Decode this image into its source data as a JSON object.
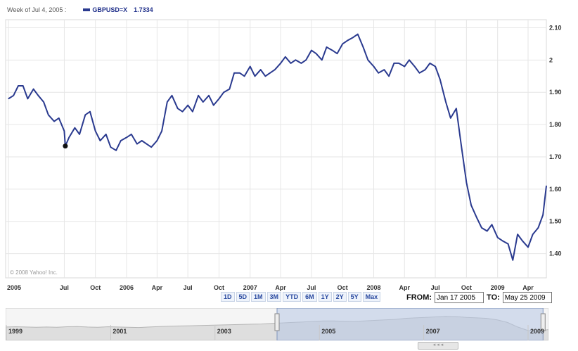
{
  "header": {
    "hover_date": "Week of Jul 4, 2005 :",
    "symbol": "GBPUSD=X",
    "value": "1.7334"
  },
  "chart_data": {
    "type": "line",
    "series": [
      {
        "name": "GBPUSD=X",
        "x": [
          "2005-01-17",
          "2005-02-01",
          "2005-02-15",
          "2005-03-01",
          "2005-03-15",
          "2005-04-01",
          "2005-04-15",
          "2005-05-01",
          "2005-05-15",
          "2005-06-01",
          "2005-06-15",
          "2005-07-01",
          "2005-07-04",
          "2005-07-15",
          "2005-08-01",
          "2005-08-15",
          "2005-09-01",
          "2005-09-15",
          "2005-10-01",
          "2005-10-15",
          "2005-11-01",
          "2005-11-15",
          "2005-12-01",
          "2005-12-15",
          "2006-01-01",
          "2006-01-15",
          "2006-02-01",
          "2006-02-15",
          "2006-03-01",
          "2006-03-15",
          "2006-04-01",
          "2006-04-15",
          "2006-05-01",
          "2006-05-15",
          "2006-06-01",
          "2006-06-15",
          "2006-07-01",
          "2006-07-15",
          "2006-08-01",
          "2006-08-15",
          "2006-09-01",
          "2006-09-15",
          "2006-10-01",
          "2006-10-15",
          "2006-11-01",
          "2006-11-15",
          "2006-12-01",
          "2006-12-15",
          "2007-01-01",
          "2007-01-15",
          "2007-02-01",
          "2007-02-15",
          "2007-03-01",
          "2007-03-15",
          "2007-04-01",
          "2007-04-15",
          "2007-05-01",
          "2007-05-15",
          "2007-06-01",
          "2007-06-15",
          "2007-07-01",
          "2007-07-15",
          "2007-08-01",
          "2007-08-15",
          "2007-09-01",
          "2007-09-15",
          "2007-10-01",
          "2007-10-15",
          "2007-11-01",
          "2007-11-15",
          "2007-12-01",
          "2007-12-15",
          "2008-01-01",
          "2008-01-15",
          "2008-02-01",
          "2008-02-15",
          "2008-03-01",
          "2008-03-15",
          "2008-04-01",
          "2008-04-15",
          "2008-05-01",
          "2008-05-15",
          "2008-06-01",
          "2008-06-15",
          "2008-07-01",
          "2008-07-15",
          "2008-08-01",
          "2008-08-15",
          "2008-09-01",
          "2008-09-15",
          "2008-10-01",
          "2008-10-15",
          "2008-11-01",
          "2008-11-15",
          "2008-12-01",
          "2008-12-15",
          "2009-01-01",
          "2009-01-15",
          "2009-02-01",
          "2009-02-15",
          "2009-03-01",
          "2009-03-15",
          "2009-04-01",
          "2009-04-15",
          "2009-05-01",
          "2009-05-15",
          "2009-05-25"
        ],
        "y": [
          1.88,
          1.89,
          1.92,
          1.92,
          1.88,
          1.91,
          1.89,
          1.87,
          1.83,
          1.81,
          1.82,
          1.78,
          1.7334,
          1.76,
          1.79,
          1.77,
          1.83,
          1.84,
          1.78,
          1.75,
          1.77,
          1.73,
          1.72,
          1.75,
          1.76,
          1.77,
          1.74,
          1.75,
          1.74,
          1.73,
          1.75,
          1.78,
          1.87,
          1.89,
          1.85,
          1.84,
          1.86,
          1.84,
          1.89,
          1.87,
          1.89,
          1.86,
          1.88,
          1.9,
          1.91,
          1.96,
          1.96,
          1.95,
          1.98,
          1.95,
          1.97,
          1.95,
          1.96,
          1.97,
          1.99,
          2.01,
          1.99,
          2.0,
          1.99,
          2.0,
          2.03,
          2.02,
          2.0,
          2.04,
          2.03,
          2.02,
          2.05,
          2.06,
          2.07,
          2.08,
          2.04,
          2.0,
          1.98,
          1.96,
          1.97,
          1.95,
          1.99,
          1.99,
          1.98,
          2.0,
          1.98,
          1.96,
          1.97,
          1.99,
          1.98,
          1.94,
          1.87,
          1.82,
          1.85,
          1.74,
          1.62,
          1.55,
          1.51,
          1.48,
          1.47,
          1.49,
          1.45,
          1.44,
          1.43,
          1.38,
          1.46,
          1.44,
          1.42,
          1.46,
          1.48,
          1.52,
          1.61
        ]
      }
    ],
    "x_ticks": [
      "2005",
      "Jul",
      "Oct",
      "2006",
      "Apr",
      "Jul",
      "Oct",
      "2007",
      "Apr",
      "Jul",
      "Oct",
      "2008",
      "Apr",
      "Jul",
      "Oct",
      "2009",
      "Apr"
    ],
    "y_ticks": [
      "2.10",
      "2",
      "1.90",
      "1.80",
      "1.70",
      "1.60",
      "1.50",
      "1.40"
    ],
    "ylim": [
      1.325,
      2.125
    ],
    "grid": true,
    "watermark": "© 2008 Yahoo! Inc."
  },
  "range_buttons": [
    "1D",
    "5D",
    "1M",
    "3M",
    "YTD",
    "6M",
    "1Y",
    "2Y",
    "5Y",
    "Max"
  ],
  "date_range": {
    "from_label": "FROM:",
    "from_value": "Jan 17 2005",
    "to_label": "TO:",
    "to_value": "May 25 2009"
  },
  "navigator": {
    "labels": [
      "1999",
      "2001",
      "2003",
      "2005",
      "2007",
      "2009"
    ],
    "values": [
      1.62,
      1.63,
      1.62,
      1.61,
      1.62,
      1.61,
      1.63,
      1.64,
      1.62,
      1.61,
      1.63,
      1.62,
      1.61,
      1.6,
      1.62,
      1.64,
      1.65,
      1.66,
      1.67,
      1.68,
      1.69,
      1.7,
      1.71,
      1.72,
      1.73,
      1.74,
      1.76,
      1.78,
      1.8,
      1.82,
      1.84,
      1.86,
      1.86,
      1.85,
      1.84,
      1.86,
      1.88,
      1.9,
      1.92,
      1.96,
      1.98,
      2.0,
      2.02,
      2.04,
      2.03,
      2.0,
      1.98,
      1.96,
      1.9,
      1.8,
      1.62,
      1.48,
      1.45,
      1.52
    ],
    "selected_from": 0.5,
    "selected_to": 0.99
  },
  "colors": {
    "line": "#2a3a8f",
    "grid": "#e6e6e6",
    "nav_fill": "#c9d6ec",
    "nav_selected": "#b7c7e4"
  }
}
